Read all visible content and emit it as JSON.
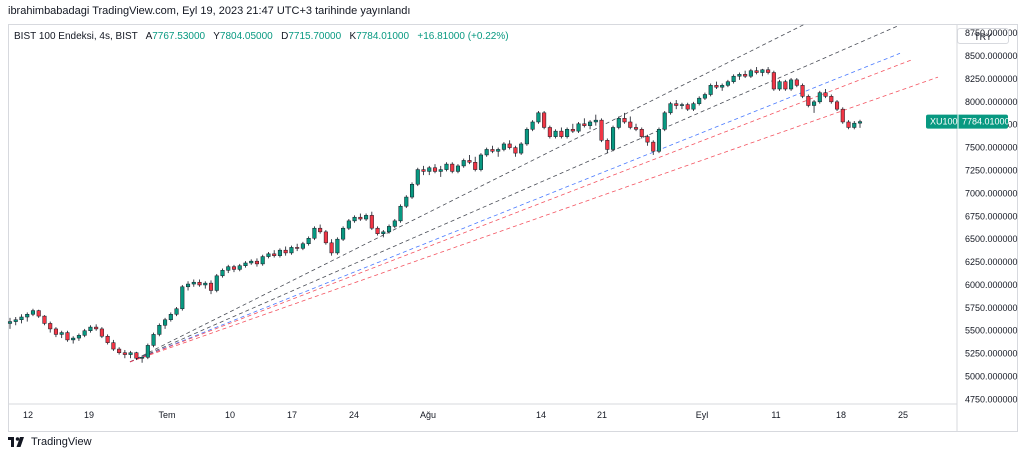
{
  "header": {
    "text": "ibrahimbabadagi TradingView.com, Eyl 19, 2023 21:47 UTC+3 tarihinde yayınlandı"
  },
  "legend": {
    "symbol": "BIST 100 Endeksi, 4s, BIST",
    "open_label": "A",
    "open": "7767.53000",
    "high_label": "Y",
    "high": "7804.05000",
    "low_label": "D",
    "low": "7715.70000",
    "close_label": "K",
    "close": "7784.01000",
    "change": "+16.81000 (+0.22%)"
  },
  "currency": "TRY",
  "last_price": {
    "symbol": "XU100",
    "value": "7784.01000",
    "color": "#089981",
    "price": 7784.01
  },
  "footer": {
    "brand": "TradingView"
  },
  "colors": {
    "up": "#089981",
    "down": "#f23645",
    "line_dark": "#2a2e39",
    "line_blue": "#2962ff",
    "line_red": "#f23645"
  },
  "chart_data": {
    "type": "candlestick",
    "y_axis": {
      "ticks": [
        8750,
        8500,
        8250,
        8000,
        7750,
        7500,
        7250,
        7000,
        6750,
        6500,
        6250,
        6000,
        5750,
        5500,
        5250,
        5000,
        4750
      ],
      "tick_labels": [
        "8750.000000",
        "8500.000000",
        "8250.000000",
        "8000.000000",
        "7750.000000",
        "7500.000000",
        "7250.000000",
        "7000.000000",
        "6750.000000",
        "6500.000000",
        "6250.000000",
        "6000.000000",
        "5750.000000",
        "5500.000000",
        "5250.000000",
        "5000.000000",
        "4750.000000"
      ],
      "range": [
        4700,
        8850
      ]
    },
    "x_axis": {
      "labels": [
        "12",
        "19",
        "Tem",
        "10",
        "17",
        "24",
        "Ağu",
        "14",
        "21",
        "Eyl",
        "11",
        "18",
        "25"
      ]
    },
    "trendlines": [
      {
        "style": "dashed",
        "color": "dark",
        "from": [
          "19",
          5160
        ],
        "to": [
          "11",
          8850
        ]
      },
      {
        "style": "dashed",
        "color": "dark",
        "from": [
          "19",
          5160
        ],
        "to": [
          "18",
          8850
        ]
      },
      {
        "style": "dashed",
        "color": "blue",
        "from": [
          "19",
          5160
        ],
        "to": [
          "18",
          8530
        ]
      },
      {
        "style": "dashed",
        "color": "red",
        "from": [
          "19",
          5160
        ],
        "to": [
          "18",
          8460
        ]
      },
      {
        "style": "dashed",
        "color": "red",
        "from": [
          "19",
          5160
        ],
        "to": [
          "25",
          8270
        ]
      }
    ],
    "candles": [
      [
        5580,
        5640,
        5520,
        5600
      ],
      [
        5600,
        5650,
        5560,
        5620
      ],
      [
        5620,
        5680,
        5580,
        5650
      ],
      [
        5650,
        5700,
        5600,
        5680
      ],
      [
        5680,
        5740,
        5660,
        5720
      ],
      [
        5720,
        5730,
        5640,
        5660
      ],
      [
        5660,
        5670,
        5560,
        5580
      ],
      [
        5580,
        5600,
        5480,
        5520
      ],
      [
        5520,
        5540,
        5430,
        5460
      ],
      [
        5460,
        5500,
        5420,
        5480
      ],
      [
        5480,
        5500,
        5380,
        5400
      ],
      [
        5400,
        5440,
        5360,
        5420
      ],
      [
        5420,
        5470,
        5390,
        5450
      ],
      [
        5450,
        5520,
        5430,
        5500
      ],
      [
        5500,
        5560,
        5480,
        5540
      ],
      [
        5540,
        5570,
        5500,
        5520
      ],
      [
        5520,
        5540,
        5420,
        5440
      ],
      [
        5440,
        5460,
        5350,
        5370
      ],
      [
        5370,
        5400,
        5280,
        5300
      ],
      [
        5300,
        5320,
        5240,
        5260
      ],
      [
        5260,
        5290,
        5200,
        5240
      ],
      [
        5240,
        5280,
        5200,
        5260
      ],
      [
        5260,
        5270,
        5180,
        5200
      ],
      [
        5200,
        5230,
        5150,
        5210
      ],
      [
        5210,
        5360,
        5190,
        5340
      ],
      [
        5340,
        5480,
        5320,
        5460
      ],
      [
        5460,
        5580,
        5440,
        5560
      ],
      [
        5560,
        5640,
        5520,
        5620
      ],
      [
        5620,
        5700,
        5600,
        5680
      ],
      [
        5680,
        5760,
        5660,
        5740
      ],
      [
        5740,
        6000,
        5720,
        5980
      ],
      [
        5980,
        6040,
        5940,
        6010
      ],
      [
        6010,
        6060,
        5980,
        6030
      ],
      [
        6030,
        6060,
        5980,
        6000
      ],
      [
        6000,
        6040,
        5960,
        6020
      ],
      [
        6020,
        6050,
        5900,
        5940
      ],
      [
        5940,
        6120,
        5920,
        6100
      ],
      [
        6100,
        6180,
        6080,
        6160
      ],
      [
        6160,
        6220,
        6130,
        6200
      ],
      [
        6200,
        6220,
        6140,
        6170
      ],
      [
        6170,
        6230,
        6150,
        6210
      ],
      [
        6210,
        6260,
        6190,
        6240
      ],
      [
        6240,
        6280,
        6220,
        6260
      ],
      [
        6260,
        6290,
        6200,
        6230
      ],
      [
        6230,
        6330,
        6210,
        6310
      ],
      [
        6310,
        6360,
        6290,
        6340
      ],
      [
        6340,
        6380,
        6300,
        6320
      ],
      [
        6320,
        6400,
        6300,
        6380
      ],
      [
        6380,
        6420,
        6320,
        6350
      ],
      [
        6350,
        6430,
        6330,
        6410
      ],
      [
        6410,
        6450,
        6370,
        6400
      ],
      [
        6400,
        6470,
        6380,
        6450
      ],
      [
        6450,
        6530,
        6430,
        6510
      ],
      [
        6510,
        6640,
        6490,
        6620
      ],
      [
        6620,
        6660,
        6560,
        6580
      ],
      [
        6580,
        6600,
        6440,
        6460
      ],
      [
        6460,
        6500,
        6320,
        6350
      ],
      [
        6350,
        6520,
        6330,
        6500
      ],
      [
        6500,
        6640,
        6480,
        6620
      ],
      [
        6620,
        6720,
        6600,
        6700
      ],
      [
        6700,
        6760,
        6680,
        6740
      ],
      [
        6740,
        6780,
        6700,
        6720
      ],
      [
        6720,
        6780,
        6700,
        6760
      ],
      [
        6760,
        6800,
        6600,
        6620
      ],
      [
        6620,
        6640,
        6540,
        6560
      ],
      [
        6560,
        6600,
        6520,
        6580
      ],
      [
        6580,
        6660,
        6560,
        6640
      ],
      [
        6640,
        6720,
        6620,
        6700
      ],
      [
        6700,
        6880,
        6680,
        6860
      ],
      [
        6860,
        6980,
        6840,
        6960
      ],
      [
        6960,
        7120,
        6940,
        7100
      ],
      [
        7100,
        7280,
        7080,
        7260
      ],
      [
        7260,
        7300,
        7200,
        7240
      ],
      [
        7240,
        7300,
        7200,
        7280
      ],
      [
        7280,
        7320,
        7220,
        7240
      ],
      [
        7240,
        7300,
        7180,
        7260
      ],
      [
        7260,
        7340,
        7240,
        7320
      ],
      [
        7320,
        7340,
        7220,
        7240
      ],
      [
        7240,
        7320,
        7220,
        7300
      ],
      [
        7300,
        7380,
        7280,
        7360
      ],
      [
        7360,
        7420,
        7320,
        7340
      ],
      [
        7340,
        7400,
        7240,
        7260
      ],
      [
        7260,
        7440,
        7240,
        7420
      ],
      [
        7420,
        7500,
        7400,
        7480
      ],
      [
        7480,
        7520,
        7440,
        7460
      ],
      [
        7460,
        7500,
        7400,
        7480
      ],
      [
        7480,
        7560,
        7460,
        7540
      ],
      [
        7540,
        7580,
        7480,
        7500
      ],
      [
        7500,
        7520,
        7400,
        7440
      ],
      [
        7440,
        7560,
        7420,
        7540
      ],
      [
        7540,
        7720,
        7520,
        7700
      ],
      [
        7700,
        7800,
        7680,
        7780
      ],
      [
        7780,
        7900,
        7760,
        7880
      ],
      [
        7880,
        7900,
        7700,
        7720
      ],
      [
        7720,
        7740,
        7600,
        7620
      ],
      [
        7620,
        7700,
        7600,
        7680
      ],
      [
        7680,
        7720,
        7600,
        7620
      ],
      [
        7620,
        7720,
        7600,
        7700
      ],
      [
        7700,
        7760,
        7660,
        7680
      ],
      [
        7680,
        7780,
        7660,
        7760
      ],
      [
        7760,
        7820,
        7720,
        7740
      ],
      [
        7740,
        7800,
        7700,
        7780
      ],
      [
        7780,
        7860,
        7740,
        7800
      ],
      [
        7800,
        7820,
        7560,
        7580
      ],
      [
        7580,
        7600,
        7440,
        7480
      ],
      [
        7480,
        7740,
        7460,
        7720
      ],
      [
        7720,
        7840,
        7700,
        7820
      ],
      [
        7820,
        7880,
        7760,
        7780
      ],
      [
        7780,
        7840,
        7700,
        7720
      ],
      [
        7720,
        7760,
        7680,
        7700
      ],
      [
        7700,
        7720,
        7600,
        7620
      ],
      [
        7620,
        7640,
        7520,
        7560
      ],
      [
        7560,
        7580,
        7420,
        7460
      ],
      [
        7460,
        7720,
        7440,
        7700
      ],
      [
        7700,
        7900,
        7680,
        7880
      ],
      [
        7880,
        8000,
        7860,
        7980
      ],
      [
        7980,
        8020,
        7920,
        7960
      ],
      [
        7960,
        7990,
        7920,
        7970
      ],
      [
        7970,
        7990,
        7900,
        7920
      ],
      [
        7920,
        8000,
        7900,
        7980
      ],
      [
        7980,
        8060,
        7960,
        8040
      ],
      [
        8040,
        8100,
        8020,
        8080
      ],
      [
        8080,
        8200,
        8060,
        8180
      ],
      [
        8180,
        8220,
        8140,
        8160
      ],
      [
        8160,
        8200,
        8120,
        8180
      ],
      [
        8180,
        8240,
        8160,
        8220
      ],
      [
        8220,
        8300,
        8200,
        8280
      ],
      [
        8280,
        8320,
        8240,
        8300
      ],
      [
        8300,
        8340,
        8260,
        8280
      ],
      [
        8280,
        8360,
        8260,
        8340
      ],
      [
        8340,
        8380,
        8300,
        8320
      ],
      [
        8320,
        8360,
        8280,
        8350
      ],
      [
        8350,
        8380,
        8300,
        8320
      ],
      [
        8320,
        8340,
        8120,
        8140
      ],
      [
        8140,
        8240,
        8120,
        8220
      ],
      [
        8220,
        8240,
        8120,
        8140
      ],
      [
        8140,
        8260,
        8120,
        8240
      ],
      [
        8240,
        8260,
        8160,
        8180
      ],
      [
        8180,
        8200,
        8040,
        8060
      ],
      [
        8060,
        8080,
        7940,
        7960
      ],
      [
        7960,
        8020,
        7880,
        8000
      ],
      [
        8000,
        8120,
        7980,
        8100
      ],
      [
        8100,
        8140,
        8040,
        8060
      ],
      [
        8060,
        8080,
        7980,
        8000
      ],
      [
        8000,
        8020,
        7900,
        7920
      ],
      [
        7920,
        7940,
        7760,
        7780
      ],
      [
        7780,
        7800,
        7700,
        7720
      ],
      [
        7720,
        7790,
        7700,
        7767
      ],
      [
        7767.53,
        7804.05,
        7715.7,
        7784.01
      ]
    ]
  }
}
